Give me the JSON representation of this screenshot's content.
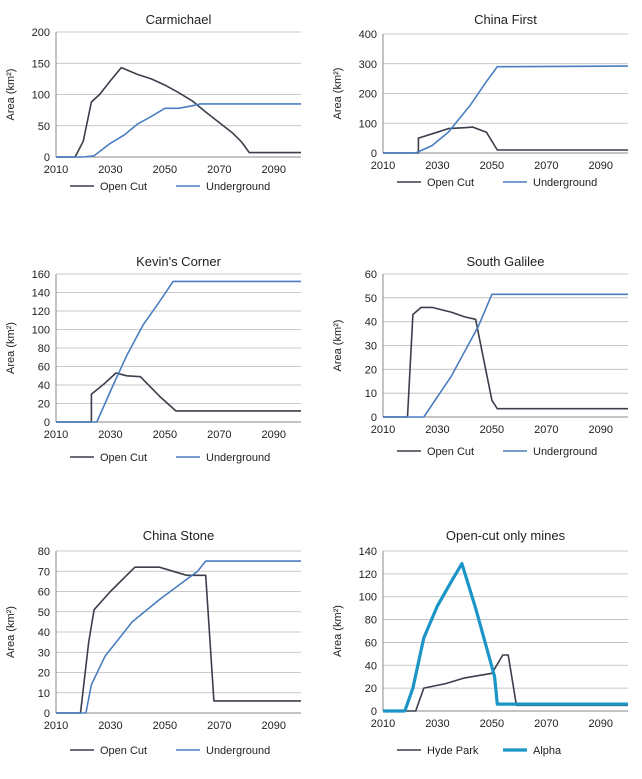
{
  "chart_data": [
    {
      "type": "line",
      "title": "Carmichael",
      "ylabel": "Area (km²)",
      "xlabel": "",
      "xlim": [
        2010,
        2100
      ],
      "ylim": [
        0,
        200
      ],
      "xticks": [
        2010,
        2030,
        2050,
        2070,
        2090
      ],
      "yticks": [
        0,
        50,
        100,
        150,
        200
      ],
      "legend_position": "bottom",
      "series": [
        {
          "name": "Open Cut",
          "color": "#3a3f4b",
          "width": 1.6,
          "points": [
            [
              2010,
              0
            ],
            [
              2017,
              0
            ],
            [
              2020,
              25
            ],
            [
              2023,
              88
            ],
            [
              2026,
              100
            ],
            [
              2030,
              122
            ],
            [
              2034,
              143
            ],
            [
              2040,
              132
            ],
            [
              2045,
              125
            ],
            [
              2050,
              115
            ],
            [
              2055,
              103
            ],
            [
              2060,
              90
            ],
            [
              2065,
              72
            ],
            [
              2070,
              55
            ],
            [
              2075,
              38
            ],
            [
              2078,
              25
            ],
            [
              2081,
              7
            ],
            [
              2100,
              7
            ]
          ]
        },
        {
          "name": "Underground",
          "color": "#4a7ebf",
          "width": 1.6,
          "points": [
            [
              2010,
              0
            ],
            [
              2020,
              0
            ],
            [
              2024,
              2
            ],
            [
              2030,
              22
            ],
            [
              2035,
              35
            ],
            [
              2040,
              53
            ],
            [
              2045,
              65
            ],
            [
              2050,
              78
            ],
            [
              2055,
              78
            ],
            [
              2060,
              82
            ],
            [
              2063,
              85
            ],
            [
              2100,
              85
            ]
          ]
        }
      ]
    },
    {
      "type": "line",
      "title": "China First",
      "ylabel": "Area (km²)",
      "xlabel": "",
      "xlim": [
        2010,
        2100
      ],
      "ylim": [
        0,
        400
      ],
      "xticks": [
        2010,
        2030,
        2050,
        2070,
        2090
      ],
      "yticks": [
        0,
        100,
        200,
        300,
        400
      ],
      "legend_position": "bottom",
      "series": [
        {
          "name": "Open Cut",
          "color": "#3a3f4b",
          "width": 1.6,
          "points": [
            [
              2010,
              0
            ],
            [
              2023,
              0
            ],
            [
              2023,
              50
            ],
            [
              2030,
              70
            ],
            [
              2034,
              82
            ],
            [
              2040,
              85
            ],
            [
              2043,
              87
            ],
            [
              2048,
              70
            ],
            [
              2052,
              10
            ],
            [
              2100,
              10
            ]
          ]
        },
        {
          "name": "Underground",
          "color": "#4a7ebf",
          "width": 1.6,
          "points": [
            [
              2010,
              0
            ],
            [
              2022,
              0
            ],
            [
              2028,
              25
            ],
            [
              2034,
              70
            ],
            [
              2042,
              160
            ],
            [
              2048,
              240
            ],
            [
              2052,
              290
            ],
            [
              2100,
              292
            ]
          ]
        }
      ]
    },
    {
      "type": "line",
      "title": "Kevin's Corner",
      "ylabel": "Area (km²)",
      "xlabel": "",
      "xlim": [
        2010,
        2100
      ],
      "ylim": [
        0,
        160
      ],
      "xticks": [
        2010,
        2030,
        2050,
        2070,
        2090
      ],
      "yticks": [
        0,
        20,
        40,
        60,
        80,
        100,
        120,
        140,
        160
      ],
      "legend_position": "bottom",
      "series": [
        {
          "name": "Open Cut",
          "color": "#3a3f4b",
          "width": 1.6,
          "points": [
            [
              2010,
              0
            ],
            [
              2023,
              0
            ],
            [
              2023,
              30
            ],
            [
              2028,
              42
            ],
            [
              2032,
              53
            ],
            [
              2036,
              50
            ],
            [
              2041,
              49
            ],
            [
              2048,
              28
            ],
            [
              2054,
              12
            ],
            [
              2100,
              12
            ]
          ]
        },
        {
          "name": "Underground",
          "color": "#4a7ebf",
          "width": 1.6,
          "points": [
            [
              2010,
              0
            ],
            [
              2025,
              0
            ],
            [
              2031,
              40
            ],
            [
              2036,
              72
            ],
            [
              2042,
              105
            ],
            [
              2048,
              130
            ],
            [
              2053,
              152
            ],
            [
              2100,
              152
            ]
          ]
        }
      ]
    },
    {
      "type": "line",
      "title": "South Galilee",
      "ylabel": "Area (km²)",
      "xlabel": "",
      "xlim": [
        2010,
        2100
      ],
      "ylim": [
        0,
        60
      ],
      "xticks": [
        2010,
        2030,
        2050,
        2070,
        2090
      ],
      "yticks": [
        0,
        10,
        20,
        30,
        40,
        50,
        60
      ],
      "legend_position": "bottom",
      "series": [
        {
          "name": "Open Cut",
          "color": "#3a3f4b",
          "width": 1.6,
          "points": [
            [
              2010,
              0
            ],
            [
              2019,
              0
            ],
            [
              2021,
              43
            ],
            [
              2024,
              46
            ],
            [
              2028,
              46
            ],
            [
              2035,
              44
            ],
            [
              2040,
              42
            ],
            [
              2044,
              41
            ],
            [
              2050,
              7
            ],
            [
              2052,
              3.5
            ],
            [
              2100,
              3.5
            ]
          ]
        },
        {
          "name": "Underground",
          "color": "#4a7ebf",
          "width": 1.6,
          "points": [
            [
              2010,
              0
            ],
            [
              2025,
              0
            ],
            [
              2035,
              17
            ],
            [
              2045,
              38
            ],
            [
              2050,
              51.5
            ],
            [
              2100,
              51.5
            ]
          ]
        }
      ]
    },
    {
      "type": "line",
      "title": "China Stone",
      "ylabel": "Area (km²)",
      "xlabel": "",
      "xlim": [
        2010,
        2100
      ],
      "ylim": [
        0,
        80
      ],
      "xticks": [
        2010,
        2030,
        2050,
        2070,
        2090
      ],
      "yticks": [
        0,
        10,
        20,
        30,
        40,
        50,
        60,
        70,
        80
      ],
      "legend_position": "bottom",
      "series": [
        {
          "name": "Open Cut",
          "color": "#3a3f4b",
          "width": 1.6,
          "points": [
            [
              2010,
              0
            ],
            [
              2019,
              0
            ],
            [
              2022,
              35
            ],
            [
              2024,
              51
            ],
            [
              2030,
              60
            ],
            [
              2039,
              72
            ],
            [
              2048,
              72
            ],
            [
              2058,
              68
            ],
            [
              2065,
              68
            ],
            [
              2068,
              6
            ],
            [
              2100,
              6
            ]
          ]
        },
        {
          "name": "Underground",
          "color": "#4a7ebf",
          "width": 1.6,
          "points": [
            [
              2010,
              0
            ],
            [
              2021,
              0
            ],
            [
              2023,
              14
            ],
            [
              2028,
              28
            ],
            [
              2038,
              45
            ],
            [
              2048,
              56
            ],
            [
              2057,
              65
            ],
            [
              2062,
              70
            ],
            [
              2065,
              75
            ],
            [
              2100,
              75
            ]
          ]
        }
      ]
    },
    {
      "type": "line",
      "title": "Open-cut only mines",
      "ylabel": "Area (km²)",
      "xlabel": "",
      "xlim": [
        2010,
        2100
      ],
      "ylim": [
        0,
        140
      ],
      "xticks": [
        2010,
        2030,
        2050,
        2070,
        2090
      ],
      "yticks": [
        0,
        20,
        40,
        60,
        80,
        100,
        120,
        140
      ],
      "legend_position": "bottom",
      "series": [
        {
          "name": "Hyde Park",
          "color": "#3a3f4b",
          "width": 1.6,
          "points": [
            [
              2010,
              0
            ],
            [
              2022,
              0
            ],
            [
              2025,
              20
            ],
            [
              2033,
              24
            ],
            [
              2040,
              29
            ],
            [
              2050,
              33
            ],
            [
              2054,
              49
            ],
            [
              2056,
              49
            ],
            [
              2059,
              5
            ],
            [
              2100,
              5
            ]
          ]
        },
        {
          "name": "Alpha",
          "color": "#1b95c8",
          "width": 3.2,
          "points": [
            [
              2010,
              0
            ],
            [
              2018,
              0
            ],
            [
              2021,
              20
            ],
            [
              2025,
              64
            ],
            [
              2030,
              92
            ],
            [
              2035,
              113
            ],
            [
              2039,
              129
            ],
            [
              2044,
              90
            ],
            [
              2048,
              56
            ],
            [
              2051,
              30
            ],
            [
              2052,
              6
            ],
            [
              2100,
              6
            ]
          ]
        }
      ]
    }
  ]
}
